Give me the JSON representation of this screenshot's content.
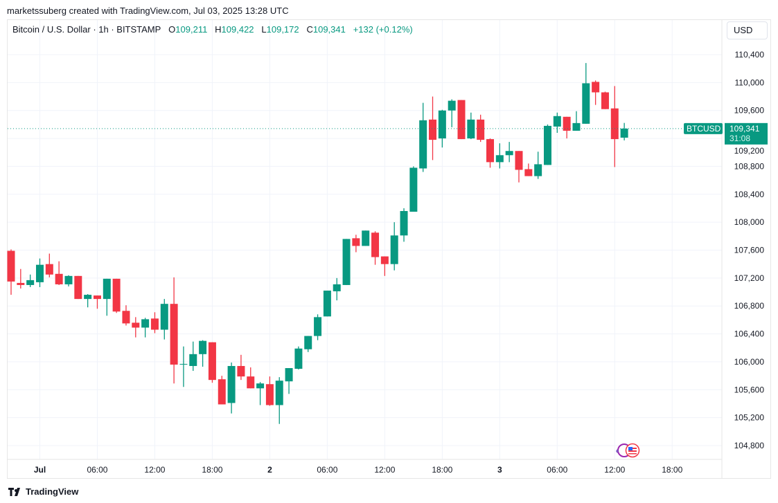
{
  "credit": "marketssuberg created with TradingView.com, Jul 03, 2025 13:28 UTC",
  "legend": {
    "symbol": "Bitcoin / U.S. Dollar · 1h · BITSTAMP",
    "o_label": "O",
    "o": "109,211",
    "h_label": "H",
    "h": "109,422",
    "l_label": "L",
    "l": "109,172",
    "c_label": "C",
    "c": "109,341",
    "change": "+132 (+0.12%)"
  },
  "currency_button": "USD",
  "price_tag": {
    "ticker": "BTCUSD",
    "price": "109,341",
    "countdown": "31:08"
  },
  "footer": {
    "brand": "TradingView"
  },
  "colors": {
    "up": "#089981",
    "down": "#f23645",
    "grid": "#f0f3fa",
    "text": "#131722"
  },
  "icons": [
    "tradingview-logo-icon",
    "events-icon",
    "us-flag-icon"
  ],
  "chart_data": {
    "type": "candlestick",
    "interval": "1h",
    "ylim": [
      104800,
      110400
    ],
    "grid": true,
    "current_price": 109341,
    "y_ticks": [
      "110,400",
      "110,000",
      "109,600",
      "109,200",
      "108,800",
      "108,400",
      "108,000",
      "107,600",
      "107,200",
      "106,800",
      "106,400",
      "106,000",
      "105,600",
      "105,200",
      "104,800"
    ],
    "x_ticks": [
      "Jul",
      "06:00",
      "12:00",
      "18:00",
      "2",
      "06:00",
      "12:00",
      "18:00",
      "3",
      "06:00",
      "12:00",
      "18:00"
    ],
    "candles_ohlc": [
      [
        107590,
        107610,
        106960,
        107150
      ],
      [
        107130,
        107330,
        107050,
        107100
      ],
      [
        107100,
        107250,
        107070,
        107170
      ],
      [
        107140,
        107480,
        107070,
        107390
      ],
      [
        107400,
        107550,
        107210,
        107250
      ],
      [
        107260,
        107440,
        107100,
        107110
      ],
      [
        107110,
        107240,
        107080,
        107230
      ],
      [
        107230,
        107230,
        106900,
        106900
      ],
      [
        106900,
        106970,
        106780,
        106960
      ],
      [
        106950,
        106950,
        106760,
        106900
      ],
      [
        106900,
        107190,
        106660,
        107190
      ],
      [
        107190,
        107190,
        106700,
        106720
      ],
      [
        106730,
        106810,
        106520,
        106550
      ],
      [
        106560,
        106640,
        106350,
        106490
      ],
      [
        106490,
        106630,
        106350,
        106610
      ],
      [
        106620,
        106710,
        106410,
        106460
      ],
      [
        106460,
        106900,
        106320,
        106830
      ],
      [
        106830,
        107210,
        105690,
        105960
      ],
      [
        105960,
        106220,
        105640,
        105970
      ],
      [
        105940,
        106290,
        105870,
        106110
      ],
      [
        106110,
        106310,
        105930,
        106300
      ],
      [
        106280,
        106280,
        105700,
        105740
      ],
      [
        105750,
        105800,
        105390,
        105390
      ],
      [
        105410,
        105990,
        105260,
        105940
      ],
      [
        105940,
        106100,
        105740,
        105790
      ],
      [
        105790,
        105920,
        105620,
        105620
      ],
      [
        105620,
        105710,
        105380,
        105690
      ],
      [
        105680,
        105790,
        105370,
        105380
      ],
      [
        105380,
        105780,
        105110,
        105730
      ],
      [
        105720,
        105910,
        105540,
        105910
      ],
      [
        105900,
        106220,
        105890,
        106190
      ],
      [
        106180,
        106370,
        106140,
        106370
      ],
      [
        106370,
        106680,
        106310,
        106640
      ],
      [
        106650,
        107020,
        106650,
        107020
      ],
      [
        107010,
        107200,
        106880,
        107110
      ],
      [
        107100,
        107760,
        107100,
        107760
      ],
      [
        107770,
        107820,
        107570,
        107660
      ],
      [
        107660,
        107880,
        107660,
        107880
      ],
      [
        107850,
        107870,
        107390,
        107500
      ],
      [
        107510,
        107510,
        107230,
        107400
      ],
      [
        107400,
        108000,
        107310,
        107810
      ],
      [
        107810,
        108200,
        107720,
        108160
      ],
      [
        108150,
        108800,
        108150,
        108780
      ],
      [
        108770,
        109710,
        108720,
        109460
      ],
      [
        109470,
        109800,
        108890,
        109180
      ],
      [
        109200,
        109610,
        109070,
        109600
      ],
      [
        109600,
        109760,
        109360,
        109740
      ],
      [
        109750,
        109750,
        109190,
        109190
      ],
      [
        109200,
        109570,
        109190,
        109470
      ],
      [
        109470,
        109540,
        109150,
        109180
      ],
      [
        109190,
        109200,
        108780,
        108860
      ],
      [
        108860,
        109130,
        108770,
        108960
      ],
      [
        108960,
        109150,
        108860,
        109020
      ],
      [
        109020,
        109020,
        108570,
        108750
      ],
      [
        108760,
        108840,
        108660,
        108660
      ],
      [
        108660,
        109010,
        108620,
        108830
      ],
      [
        108820,
        109400,
        108820,
        109380
      ],
      [
        109370,
        109570,
        109280,
        109520
      ],
      [
        109510,
        109510,
        109200,
        109310
      ],
      [
        109310,
        109590,
        109310,
        109420
      ],
      [
        109410,
        110280,
        109410,
        109990
      ],
      [
        110010,
        110030,
        109680,
        109860
      ],
      [
        109860,
        109870,
        109620,
        109620
      ],
      [
        109630,
        109950,
        108790,
        109190
      ],
      [
        109211,
        109422,
        109172,
        109341
      ]
    ]
  }
}
